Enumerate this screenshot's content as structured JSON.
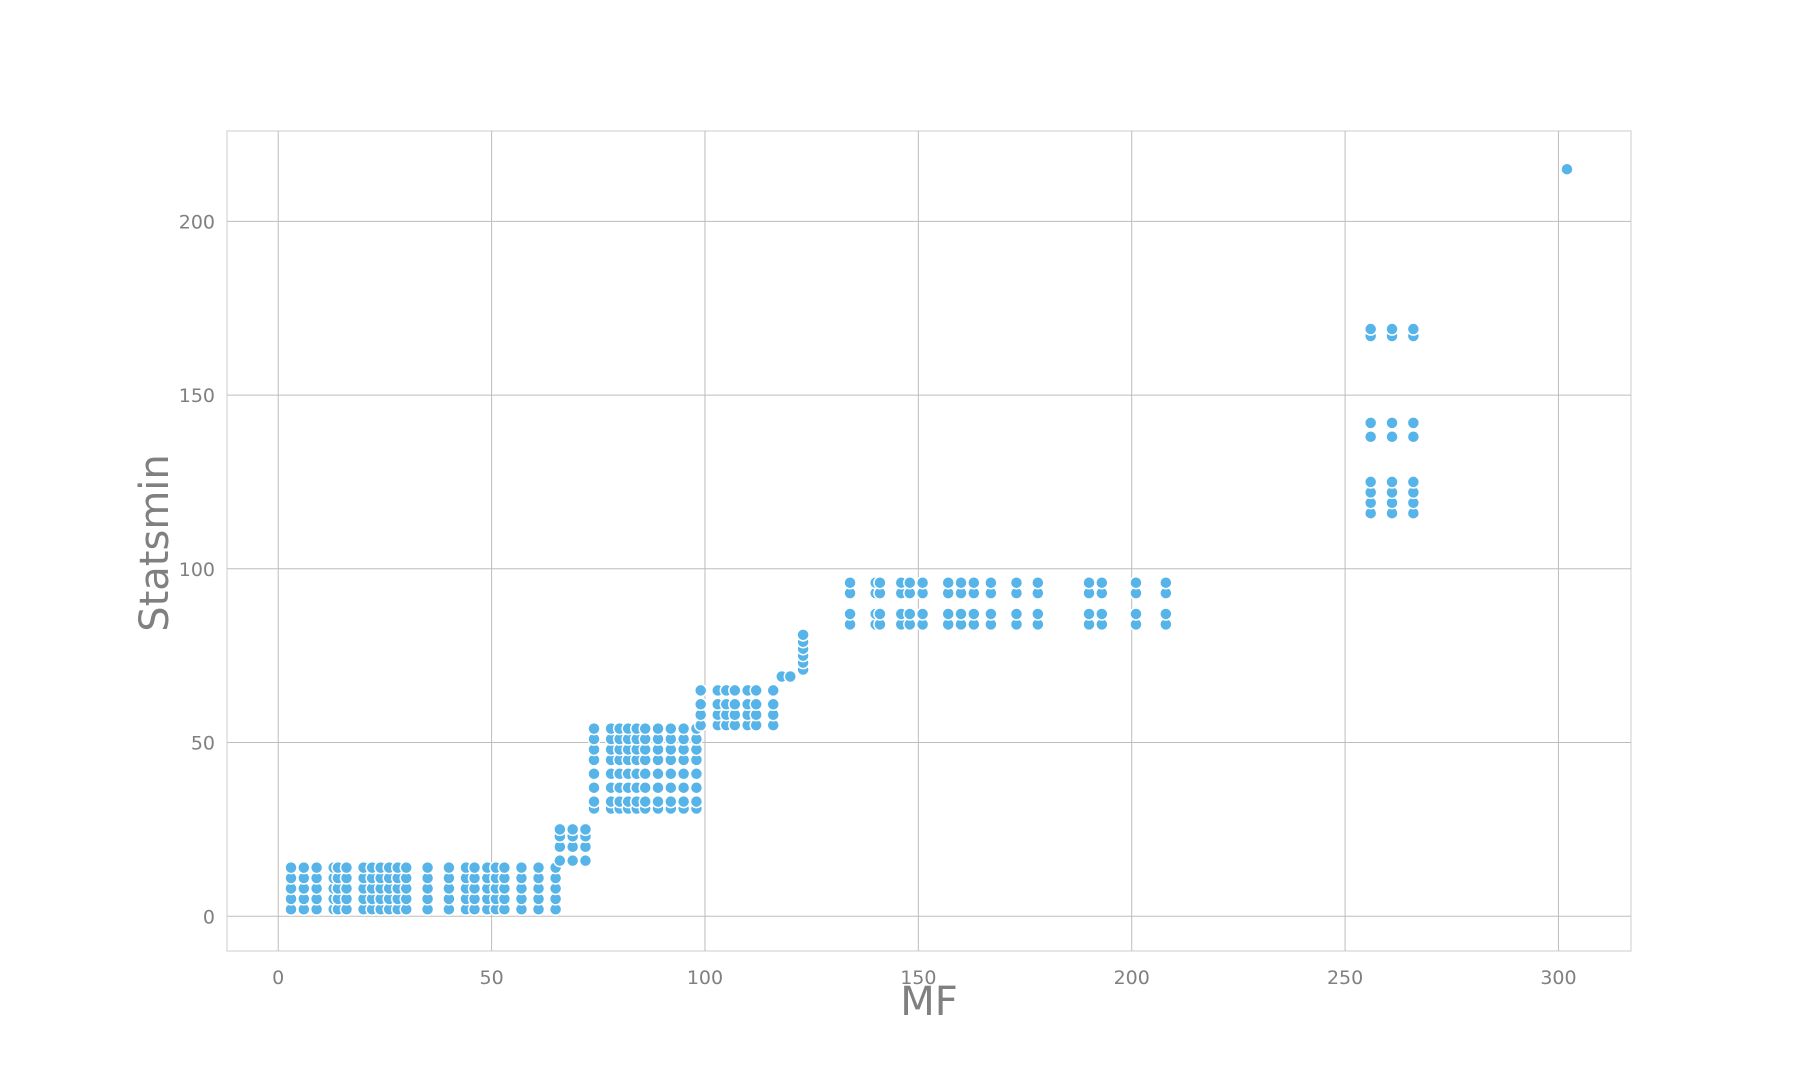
{
  "chart_data": {
    "type": "scatter",
    "title": "",
    "xlabel": "MF",
    "ylabel": "Statsmin",
    "xlim": [
      -12,
      317
    ],
    "ylim": [
      -10,
      226
    ],
    "xticks": [
      0,
      50,
      100,
      150,
      200,
      250,
      300
    ],
    "yticks": [
      0,
      50,
      100,
      150,
      200
    ],
    "grid": true,
    "legend": "none",
    "marker_color": "#56b4e9",
    "groups": [
      {
        "xs": [
          3,
          6,
          9,
          13,
          14,
          16,
          20,
          22,
          24,
          26,
          28,
          30,
          35,
          40,
          44,
          46,
          49,
          51,
          53,
          57,
          61,
          65
        ],
        "ys": [
          2,
          5,
          8,
          11,
          14
        ]
      },
      {
        "xs": [
          66,
          69,
          72
        ],
        "ys": [
          16,
          20,
          23,
          25
        ]
      },
      {
        "xs": [
          74,
          78,
          80,
          82,
          84,
          86,
          89,
          92,
          95,
          98
        ],
        "ys": [
          31,
          33,
          37,
          41,
          45,
          48,
          51,
          54
        ]
      },
      {
        "xs": [
          99,
          103,
          105,
          107,
          110,
          112,
          116
        ],
        "ys": [
          55,
          58,
          61,
          65
        ]
      },
      {
        "xs": [
          118,
          120
        ],
        "ys": [
          69
        ]
      },
      {
        "xs": [
          123
        ],
        "ys": [
          71,
          73,
          75,
          77,
          79,
          81
        ]
      },
      {
        "xs": [
          134,
          140,
          141,
          146,
          148,
          151,
          157,
          160,
          163,
          167,
          173,
          178,
          190,
          193,
          201,
          208
        ],
        "ys": [
          84,
          87,
          93,
          96
        ]
      },
      {
        "xs": [
          256,
          261,
          266
        ],
        "ys": [
          116,
          119,
          122,
          125,
          138,
          142,
          167,
          169
        ]
      },
      {
        "xs": [
          302
        ],
        "ys": [
          215
        ]
      }
    ]
  }
}
